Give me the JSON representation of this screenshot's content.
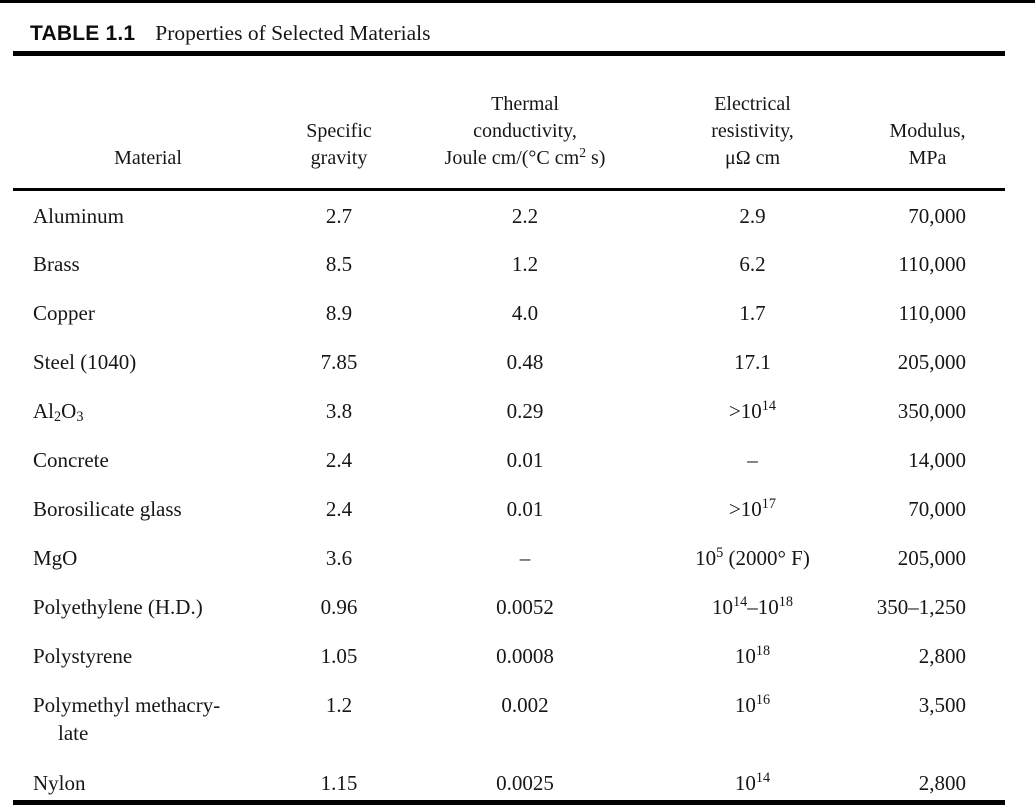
{
  "colors": {
    "ink": "#000000",
    "text": "#161616",
    "background": "#ffffff"
  },
  "title": {
    "label": "TABLE 1.1",
    "caption": "Properties of Selected Materials"
  },
  "table": {
    "columns": {
      "material": {
        "lines": [
          "Material"
        ]
      },
      "specific_gravity": {
        "lines": [
          "Specific",
          "gravity"
        ]
      },
      "thermal_conductivity": {
        "lines": [
          "Thermal",
          "conductivity,",
          "Joule cm/(°C cm^{2} s)"
        ]
      },
      "electrical_resistivity": {
        "lines": [
          "Electrical",
          "resistivity,",
          "μΩ cm"
        ]
      },
      "modulus": {
        "lines": [
          "Modulus,",
          "MPa"
        ]
      }
    },
    "rows": [
      {
        "material": "Aluminum",
        "specific_gravity": "2.7",
        "thermal_conductivity": "2.2",
        "electrical_resistivity": "2.9",
        "modulus": "70,000"
      },
      {
        "material": "Brass",
        "specific_gravity": "8.5",
        "thermal_conductivity": "1.2",
        "electrical_resistivity": "6.2",
        "modulus": "110,000"
      },
      {
        "material": "Copper",
        "specific_gravity": "8.9",
        "thermal_conductivity": "4.0",
        "electrical_resistivity": "1.7",
        "modulus": "110,000"
      },
      {
        "material": "Steel (1040)",
        "specific_gravity": "7.85",
        "thermal_conductivity": "0.48",
        "electrical_resistivity": "17.1",
        "modulus": "205,000"
      },
      {
        "material": "Al_{2}O_{3}",
        "specific_gravity": "3.8",
        "thermal_conductivity": "0.29",
        "electrical_resistivity": ">10^{14}",
        "modulus": "350,000"
      },
      {
        "material": "Concrete",
        "specific_gravity": "2.4",
        "thermal_conductivity": "0.01",
        "electrical_resistivity": "–",
        "modulus": "14,000"
      },
      {
        "material": "Borosilicate glass",
        "specific_gravity": "2.4",
        "thermal_conductivity": "0.01",
        "electrical_resistivity": ">10^{17}",
        "modulus": "70,000"
      },
      {
        "material": "MgO",
        "specific_gravity": "3.6",
        "thermal_conductivity": "–",
        "electrical_resistivity": "10^{5} (2000° F)",
        "modulus": "205,000"
      },
      {
        "material": "Polyethylene (H.D.)",
        "specific_gravity": "0.96",
        "thermal_conductivity": "0.0052",
        "electrical_resistivity": "10^{14}–10^{18}",
        "modulus": "350–1,250"
      },
      {
        "material": "Polystyrene",
        "specific_gravity": "1.05",
        "thermal_conductivity": "0.0008",
        "electrical_resistivity": "10^{18}",
        "modulus": "2,800"
      },
      {
        "material": "Polymethyl methacry-",
        "material_line2": "late",
        "specific_gravity": "1.2",
        "thermal_conductivity": "0.002",
        "electrical_resistivity": "10^{16}",
        "modulus": "3,500"
      },
      {
        "material": "Nylon",
        "specific_gravity": "1.15",
        "thermal_conductivity": "0.0025",
        "electrical_resistivity": "10^{14}",
        "modulus": "2,800"
      }
    ]
  }
}
